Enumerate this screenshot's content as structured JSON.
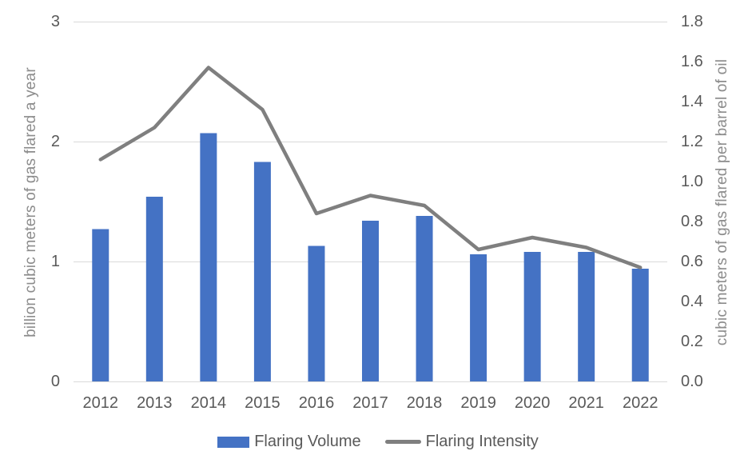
{
  "chart_data": {
    "type": "bar",
    "combo": true,
    "categories": [
      "2012",
      "2013",
      "2014",
      "2015",
      "2016",
      "2017",
      "2018",
      "2019",
      "2020",
      "2021",
      "2022"
    ],
    "series": [
      {
        "name": "Flaring Volume",
        "type": "bar",
        "axis": "left",
        "color": "#4472C4",
        "values": [
          1.27,
          1.54,
          2.07,
          1.83,
          1.13,
          1.34,
          1.38,
          1.06,
          1.08,
          1.08,
          0.94
        ]
      },
      {
        "name": "Flaring Intensity",
        "type": "line",
        "axis": "right",
        "color": "#7F7F7F",
        "values": [
          1.11,
          1.27,
          1.57,
          1.36,
          0.84,
          0.93,
          0.88,
          0.66,
          0.72,
          0.67,
          0.57
        ]
      }
    ],
    "title": "",
    "xlabel": "",
    "left_axis": {
      "label": "billion cubic meters of gas flared a year",
      "min": 0,
      "max": 3,
      "tick_step": 1,
      "tick_labels": [
        "0",
        "1",
        "2",
        "3"
      ]
    },
    "right_axis": {
      "label": "cubic meters of gas flared per barrel of oil",
      "min": 0,
      "max": 1.8,
      "tick_step": 0.2,
      "tick_labels": [
        "0.0",
        "0.2",
        "0.4",
        "0.6",
        "0.8",
        "1.0",
        "1.2",
        "1.4",
        "1.6",
        "1.8"
      ]
    },
    "grid": true,
    "legend": {
      "position": "bottom"
    },
    "colors": {
      "gridline": "#D9D9D9",
      "tick_text": "#595959",
      "axis_title_text": "#8C8C8C",
      "background": "#FFFFFF"
    }
  }
}
